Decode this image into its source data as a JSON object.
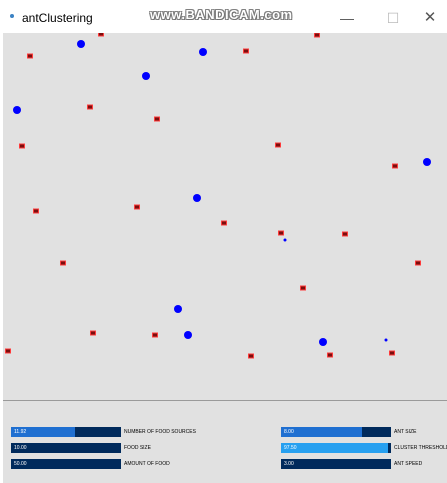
{
  "window": {
    "title": "antClustering",
    "watermark": "www.BANDICAM.com",
    "minimize_glyph": "—",
    "maximize_glyph": "☐",
    "close_glyph": "✕"
  },
  "colors": {
    "canvas_bg": "#e1e1e1",
    "food": "#0000ff",
    "ant_body": "#7a0e0e",
    "ant_legs": "#ff3a3a",
    "slider_track": "#002a5c",
    "slider_fill": "#1f6fd1",
    "slider_fill_active": "#27a0f0"
  },
  "controls": [
    {
      "label": "NUMBER OF FOOD SOURCES",
      "value_text": "11.92",
      "fraction": 0.58,
      "active": false
    },
    {
      "label": "FOOD SIZE",
      "value_text": "10.00",
      "fraction": 0.0,
      "active": false
    },
    {
      "label": "AMOUNT OF FOOD",
      "value_text": "50.00",
      "fraction": 0.0,
      "active": false
    },
    {
      "label": "ANT SIZE",
      "value_text": "8.00",
      "fraction": 0.74,
      "active": false
    },
    {
      "label": "CLUSTER THRESHOLD",
      "value_text": "97.50",
      "fraction": 0.975,
      "active": true
    },
    {
      "label": "ANT SPEED",
      "value_text": "3.00",
      "fraction": 0.0,
      "active": false
    }
  ]
}
